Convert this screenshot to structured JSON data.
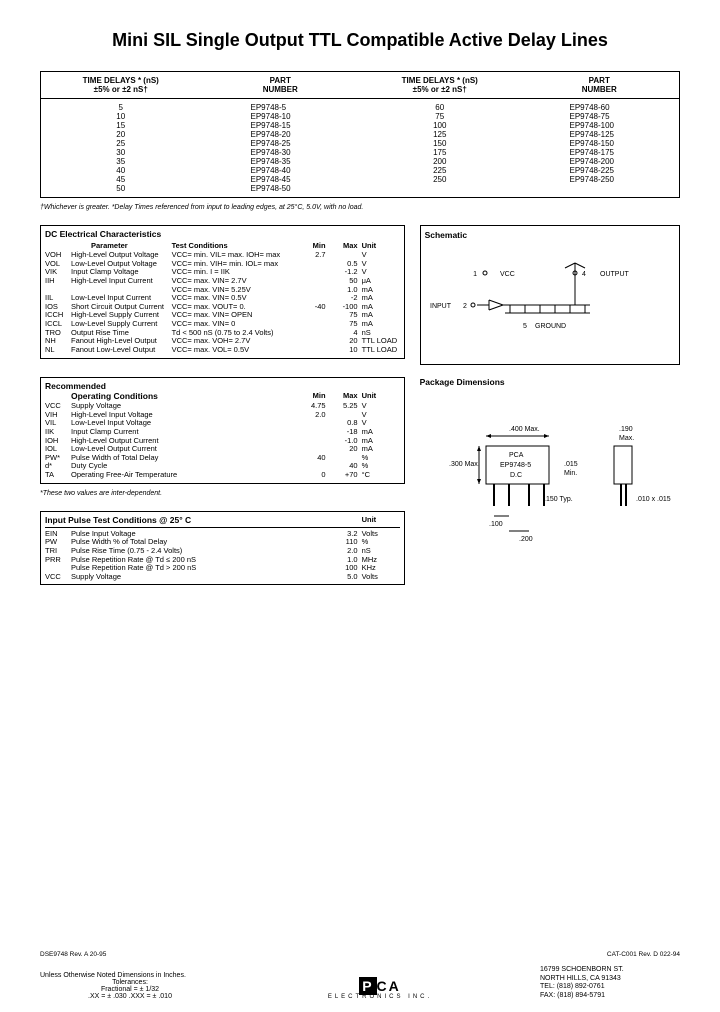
{
  "title": "Mini SIL Single Output TTL Compatible Active Delay Lines",
  "parts_header": {
    "col1": "TIME DELAYS * (nS)",
    "col1b": "±5% or ±2  nS†",
    "col2": "PART",
    "col2b": "NUMBER",
    "col3": "TIME DELAYS * (nS)",
    "col3b": "±5% or ±2  nS†",
    "col4": "PART",
    "col4b": "NUMBER"
  },
  "parts_left": {
    "delays": [
      "5",
      "10",
      "15",
      "20",
      "25",
      "30",
      "35",
      "40",
      "45",
      "50"
    ],
    "nums": [
      "EP9748-5",
      "EP9748-10",
      "EP9748-15",
      "EP9748-20",
      "EP9748-25",
      "EP9748-30",
      "EP9748-35",
      "EP9748-40",
      "EP9748-45",
      "EP9748-50"
    ]
  },
  "parts_right": {
    "delays": [
      "60",
      "75",
      "100",
      "125",
      "150",
      "175",
      "200",
      "225",
      "250",
      ""
    ],
    "nums": [
      "EP9748-60",
      "EP9748-75",
      "EP9748-100",
      "EP9748-125",
      "EP9748-150",
      "EP9748-175",
      "EP9748-200",
      "EP9748-225",
      "EP9748-250",
      ""
    ]
  },
  "footnote1": "†Whichever is greater.     *Delay Times referenced from input to leading edges, at 25°C, 5.0V,  with no load.",
  "dc": {
    "title": "DC Electrical Characteristics",
    "h_param": "Parameter",
    "h_cond": "Test Conditions",
    "h_min": "Min",
    "h_max": "Max",
    "h_unit": "Unit",
    "rows": [
      {
        "sym": "VOH",
        "name": "High-Level Output Voltage",
        "cond": "VCC= min. VIL= max. IOH= max",
        "min": "2.7",
        "max": "",
        "unit": "V"
      },
      {
        "sym": "VOL",
        "name": "Low-Level Output Voltage",
        "cond": "VCC= min. VIH= min. IOL= max",
        "min": "",
        "max": "0.5",
        "unit": "V"
      },
      {
        "sym": "VIK",
        "name": "Input Clamp Voltage",
        "cond": "VCC= min. I = IIK",
        "min": "",
        "max": "-1.2",
        "unit": "V"
      },
      {
        "sym": "IIH",
        "name": "High-Level Input Current",
        "cond": "VCC= max. VIN= 2.7V",
        "min": "",
        "max": "50",
        "unit": "μA"
      },
      {
        "sym": "",
        "name": "",
        "cond": "VCC= max. VIN= 5.25V",
        "min": "",
        "max": "1.0",
        "unit": "mA"
      },
      {
        "sym": "IIL",
        "name": "Low-Level Input Current",
        "cond": "VCC= max. VIN= 0.5V",
        "min": "",
        "max": "-2",
        "unit": "mA"
      },
      {
        "sym": "IOS",
        "name": "Short Circuit Output Current",
        "cond": "VCC= max. VOUT= 0.",
        "min": "-40",
        "max": "-100",
        "unit": "mA"
      },
      {
        "sym": "ICCH",
        "name": "High-Level Supply Current",
        "cond": "VCC= max. VIN= OPEN",
        "min": "",
        "max": "75",
        "unit": "mA"
      },
      {
        "sym": "ICCL",
        "name": "Low-Level Supply Current",
        "cond": "VCC= max. VIN= 0",
        "min": "",
        "max": "75",
        "unit": "mA"
      },
      {
        "sym": "TRO",
        "name": "Output Rise Time",
        "cond": "Td < 500 nS (0.75 to 2.4 Volts)",
        "min": "",
        "max": "4",
        "unit": "nS"
      },
      {
        "sym": "NH",
        "name": "Fanout High-Level Output",
        "cond": "VCC= max. VOH= 2.7V",
        "min": "",
        "max": "20",
        "unit": "TTL LOAD"
      },
      {
        "sym": "NL",
        "name": "Fanout Low-Level Output",
        "cond": "VCC= max. VOL= 0.5V",
        "min": "",
        "max": "10",
        "unit": "TTL LOAD"
      }
    ]
  },
  "schematic": {
    "title": "Schematic",
    "vcc": "VCC",
    "pin1": "1",
    "input": "INPUT",
    "pin2": "2",
    "output": "OUTPUT",
    "pin4": "4",
    "ground": "GROUND",
    "pin5": "5"
  },
  "rec": {
    "title": "Recommended",
    "title2": "Operating Conditions",
    "h_min": "Min",
    "h_max": "Max",
    "h_unit": "Unit",
    "rows": [
      {
        "sym": "VCC",
        "name": "Supply Voltage",
        "min": "4.75",
        "max": "5.25",
        "unit": "V"
      },
      {
        "sym": "VIH",
        "name": "High-Level Input Voltage",
        "min": "2.0",
        "max": "",
        "unit": "V"
      },
      {
        "sym": "VIL",
        "name": "Low-Level Input Voltage",
        "min": "",
        "max": "0.8",
        "unit": "V"
      },
      {
        "sym": "IIK",
        "name": "Input Clamp Current",
        "min": "",
        "max": "-18",
        "unit": "mA"
      },
      {
        "sym": "IOH",
        "name": "High-Level Output Current",
        "min": "",
        "max": "-1.0",
        "unit": "mA"
      },
      {
        "sym": "IOL",
        "name": "Low-Level Output Current",
        "min": "",
        "max": "20",
        "unit": "mA"
      },
      {
        "sym": "PW*",
        "name": "Pulse Width of Total Delay",
        "min": "40",
        "max": "",
        "unit": "%"
      },
      {
        "sym": "d*",
        "name": "Duty Cycle",
        "min": "",
        "max": "40",
        "unit": "%"
      },
      {
        "sym": "TA",
        "name": "Operating Free-Air Temperature",
        "min": "0",
        "max": "+70",
        "unit": "°C"
      }
    ],
    "note": "*These two values are inter-dependent."
  },
  "pkg": {
    "title": "Package Dimensions",
    "w": ".400 Max.",
    "h": ".300 Max.",
    "label": "PCA",
    "label2": "EP9748-5",
    "label3": "D.C",
    "t": ".190",
    "tmax": "Max.",
    "pin": ".015",
    "pinmin": "Min.",
    "typ": ".150 Typ.",
    "lead": ".010 x .015",
    "sp1": ".100",
    "sp2": ".200"
  },
  "pulse": {
    "title": "Input Pulse Test Conditions @ 25° C",
    "h_unit": "Unit",
    "rows": [
      {
        "sym": "EIN",
        "name": "Pulse Input Voltage",
        "val": "3.2",
        "unit": "Volts"
      },
      {
        "sym": "PW",
        "name": "Pulse Width % of Total Delay",
        "val": "110",
        "unit": "%"
      },
      {
        "sym": "TRI",
        "name": "Pulse Rise Time (0.75 - 2.4 Volts)",
        "val": "2.0",
        "unit": "nS"
      },
      {
        "sym": "PRR",
        "name": "Pulse Repetition Rate @ Td ≤ 200 nS",
        "val": "1.0",
        "unit": "MHz"
      },
      {
        "sym": "",
        "name": "Pulse Repetition Rate @ Td > 200 nS",
        "val": "100",
        "unit": "KHz"
      },
      {
        "sym": "VCC",
        "name": "Supply Voltage",
        "val": "5.0",
        "unit": "Volts"
      }
    ]
  },
  "footer": {
    "leftcode": "DSE9748  Rev. A  20-95",
    "rightcode": "CAT-C001  Rev. D  022-94",
    "tol1": "Unless Otherwise Noted Dimensions in Inches.",
    "tol2": "Tolerances:",
    "tol3": "Fractional = ± 1/32",
    "tol4": ".XX = ± .030     .XXX = ± .010",
    "logo": "PCA",
    "logosub": "ELECTRONICS   INC.",
    "addr1": "16799 SCHOENBORN ST.",
    "addr2": "NORTH HILLS, CA  91343",
    "addr3": "TEL: (818) 892-0761",
    "addr4": "FAX: (818) 894-5791"
  }
}
